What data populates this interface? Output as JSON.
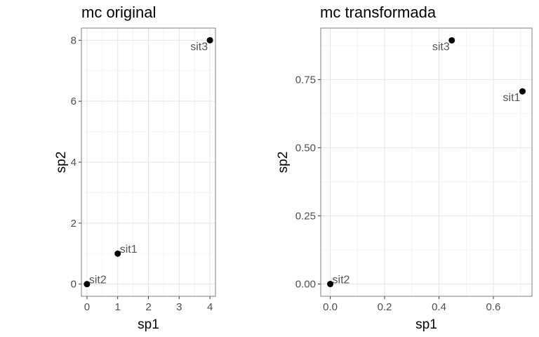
{
  "chart_data": [
    {
      "type": "scatter",
      "title": "mc original",
      "xlabel": "sp1",
      "ylabel": "sp2",
      "xlim": [
        -0.18,
        4.18
      ],
      "ylim": [
        -0.4,
        8.4
      ],
      "xticks": [
        0,
        1,
        2,
        3,
        4
      ],
      "yticks": [
        0,
        2,
        4,
        6,
        8
      ],
      "xtick_labels": [
        "0",
        "1",
        "2",
        "3",
        "4"
      ],
      "ytick_labels": [
        "0",
        "2",
        "4",
        "6",
        "8"
      ],
      "grid": true,
      "points": [
        {
          "label": "sit1",
          "x": 1,
          "y": 1,
          "label_side": "right"
        },
        {
          "label": "sit2",
          "x": 0,
          "y": 0,
          "label_side": "right"
        },
        {
          "label": "sit3",
          "x": 4,
          "y": 8,
          "label_side": "left"
        }
      ]
    },
    {
      "type": "scatter",
      "title": "mc transformada",
      "xlabel": "sp1",
      "ylabel": "sp2",
      "xlim": [
        -0.035,
        0.742
      ],
      "ylim": [
        -0.045,
        0.939
      ],
      "xticks": [
        0.0,
        0.2,
        0.4,
        0.6
      ],
      "yticks": [
        0.0,
        0.25,
        0.5,
        0.75
      ],
      "xtick_labels": [
        "0.0",
        "0.2",
        "0.4",
        "0.6"
      ],
      "ytick_labels": [
        "0.00",
        "0.25",
        "0.50",
        "0.75"
      ],
      "grid": true,
      "points": [
        {
          "label": "sit1",
          "x": 0.707,
          "y": 0.707,
          "label_side": "left"
        },
        {
          "label": "sit2",
          "x": 0,
          "y": 0,
          "label_side": "right"
        },
        {
          "label": "sit3",
          "x": 0.447,
          "y": 0.894,
          "label_side": "left"
        }
      ]
    }
  ]
}
